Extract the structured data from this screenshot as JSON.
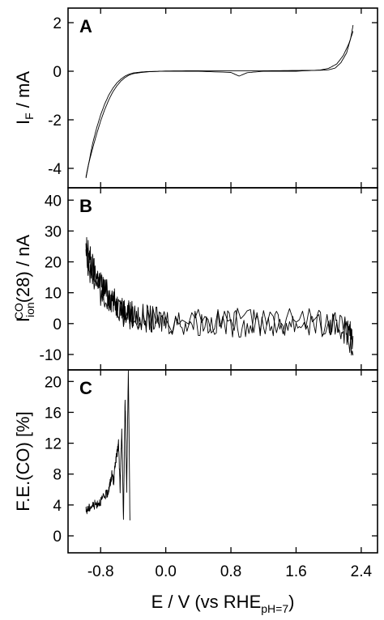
{
  "chart_data": [
    {
      "panel": "A",
      "type": "line",
      "xlabel": "E / V (vs RHE pH=7)",
      "ylabel": "I F / mA",
      "xlim": [
        -1.2,
        2.6
      ],
      "ylim": [
        -4.8,
        2.6
      ],
      "yticks": [
        "-4",
        "-2",
        "0",
        "2"
      ],
      "series": [
        {
          "x": [
            -0.98,
            -0.94,
            -0.9,
            -0.85,
            -0.8,
            -0.75,
            -0.7,
            -0.65,
            -0.6,
            -0.55,
            -0.5,
            -0.45,
            -0.4,
            -0.3,
            -0.2,
            0.0,
            0.4,
            0.8,
            0.9,
            1.0,
            1.2,
            1.6,
            1.9,
            2.0,
            2.1,
            2.18,
            2.25,
            2.3
          ],
          "y": [
            -4.4,
            -3.7,
            -3.0,
            -2.35,
            -1.8,
            -1.35,
            -0.98,
            -0.7,
            -0.48,
            -0.32,
            -0.2,
            -0.12,
            -0.07,
            -0.03,
            -0.01,
            0.0,
            0.0,
            -0.05,
            -0.2,
            -0.06,
            0.0,
            0.0,
            0.05,
            0.12,
            0.3,
            0.65,
            1.15,
            1.65
          ]
        },
        {
          "x": [
            2.3,
            2.27,
            2.22,
            2.15,
            2.08,
            2.0,
            1.9,
            1.6,
            1.2,
            0.8,
            0.4,
            0.0,
            -0.2,
            -0.3,
            -0.4,
            -0.45,
            -0.5,
            -0.55,
            -0.6,
            -0.65,
            -0.7,
            -0.75,
            -0.8,
            -0.85,
            -0.9,
            -0.95,
            -0.98
          ],
          "y": [
            1.9,
            1.35,
            0.75,
            0.35,
            0.13,
            0.06,
            0.04,
            0.03,
            0.02,
            0.02,
            0.02,
            0.01,
            -0.02,
            -0.05,
            -0.1,
            -0.16,
            -0.26,
            -0.4,
            -0.6,
            -0.85,
            -1.18,
            -1.58,
            -2.05,
            -2.6,
            -3.2,
            -3.85,
            -4.35
          ]
        }
      ]
    },
    {
      "panel": "B",
      "type": "line",
      "ylabel": "I ion CO (28) / nA",
      "xlim": [
        -1.2,
        2.6
      ],
      "ylim": [
        -15,
        44
      ],
      "yticks": [
        "-10",
        "0",
        "10",
        "20",
        "30",
        "40"
      ],
      "series": [
        {
          "x": [
            -0.98,
            -0.95,
            -0.92,
            -0.88,
            -0.84,
            -0.8,
            -0.75,
            -0.7,
            -0.65,
            -0.6,
            -0.55,
            -0.5,
            -0.45,
            -0.4,
            -0.3,
            -0.2,
            -0.1,
            0.0,
            0.2,
            0.4,
            0.6,
            0.8,
            1.0,
            1.2,
            1.4,
            1.6,
            1.8,
            2.0,
            2.1,
            2.2,
            2.25,
            2.3
          ],
          "y": [
            22,
            24,
            20,
            17,
            15,
            13,
            11,
            9,
            7.5,
            6,
            5,
            4,
            3.5,
            3,
            2,
            1.5,
            1,
            0.8,
            0.5,
            0.3,
            0.2,
            0.1,
            0,
            0,
            0,
            0,
            0,
            -0.5,
            -1,
            -2,
            -3,
            -4
          ]
        },
        {
          "x": [
            2.3,
            2.2,
            2.0,
            1.6,
            1.2,
            0.8,
            0.4,
            0.0,
            -0.2,
            -0.4,
            -0.5,
            -0.6,
            -0.7,
            -0.8,
            -0.9,
            -0.95,
            -0.98
          ],
          "y": [
            -8,
            -2,
            0.5,
            0.5,
            0.5,
            0.5,
            0.5,
            0.5,
            1,
            2,
            3,
            5,
            7,
            10,
            14,
            19,
            26
          ]
        }
      ]
    },
    {
      "panel": "C",
      "type": "line",
      "xlabel": "E / V (vs RHE pH=7)",
      "ylabel": "F.E.(CO) [%]",
      "xlim": [
        -1.2,
        2.6
      ],
      "ylim": [
        -2.2,
        21.5
      ],
      "xticks": [
        "-0.8",
        "0.0",
        "0.8",
        "1.6",
        "2.4"
      ],
      "yticks": [
        "0",
        "4",
        "8",
        "12",
        "16",
        "20"
      ],
      "series": [
        {
          "x": [
            -0.98,
            -0.95,
            -0.92,
            -0.88,
            -0.84,
            -0.8,
            -0.76,
            -0.72,
            -0.7,
            -0.68,
            -0.66,
            -0.64,
            -0.62,
            -0.6,
            -0.58,
            -0.56,
            -0.54,
            -0.52,
            -0.5,
            -0.48,
            -0.46,
            -0.44
          ],
          "y": [
            3.2,
            3.5,
            3.8,
            4.0,
            4.2,
            4.5,
            5.0,
            5.5,
            6.0,
            7.0,
            8.0,
            7.0,
            9.5,
            10.5,
            12.0,
            6.0,
            14.0,
            2.0,
            18.0,
            6.0,
            21.5,
            2.0
          ]
        }
      ]
    }
  ]
}
